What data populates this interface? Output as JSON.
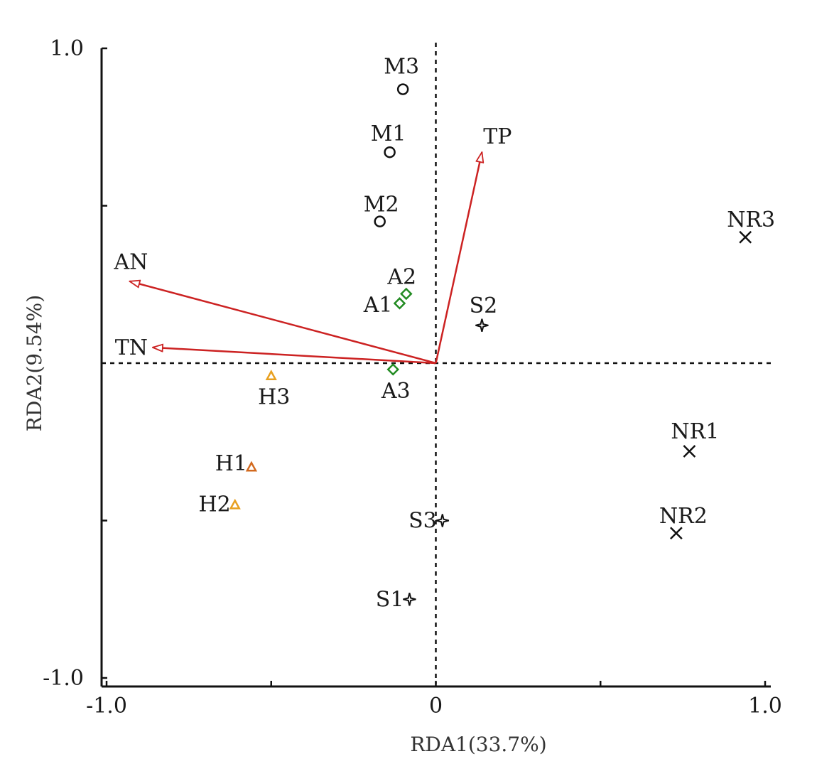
{
  "chart_data": {
    "type": "scatter",
    "xlabel": "RDA1(33.7%)",
    "ylabel": "RDA2(9.54%)",
    "xlim": [
      -1.0,
      1.0
    ],
    "ylim": [
      -1.0,
      1.0
    ],
    "x_tick_labels": [
      {
        "value": -1.0,
        "label": "-1.0"
      },
      {
        "value": 0,
        "label": "0"
      },
      {
        "value": 1.0,
        "label": "1.0"
      }
    ],
    "y_tick_labels": [
      {
        "value": 1.0,
        "label": "1.0"
      },
      {
        "value": -1.0,
        "label": "-1.0"
      }
    ],
    "minor_ticks": [
      -0.5,
      0.5
    ],
    "zero_lines": "dashed",
    "grid": false,
    "arrows": [
      {
        "name": "TP",
        "x": 0.14,
        "y": 0.67,
        "color": "#cc2222"
      },
      {
        "name": "AN",
        "x": -0.93,
        "y": 0.26,
        "color": "#cc2222"
      },
      {
        "name": "TN",
        "x": -0.86,
        "y": 0.05,
        "color": "#cc2222"
      }
    ],
    "groups": [
      {
        "id": "M",
        "marker": "circle",
        "color": "#111111",
        "points": [
          {
            "label": "M3",
            "x": -0.1,
            "y": 0.87
          },
          {
            "label": "M1",
            "x": -0.14,
            "y": 0.67
          },
          {
            "label": "M2",
            "x": -0.17,
            "y": 0.45
          }
        ]
      },
      {
        "id": "A",
        "marker": "diamond",
        "color": "#228B22",
        "points": [
          {
            "label": "A2",
            "x": -0.09,
            "y": 0.22
          },
          {
            "label": "A1",
            "x": -0.11,
            "y": 0.19
          },
          {
            "label": "A3",
            "x": -0.13,
            "y": -0.02
          }
        ]
      },
      {
        "id": "S",
        "marker": "star",
        "color": "#111111",
        "points": [
          {
            "label": "S2",
            "x": 0.14,
            "y": 0.12
          },
          {
            "label": "S3",
            "x": 0.02,
            "y": -0.5
          },
          {
            "label": "S1",
            "x": -0.08,
            "y": -0.75
          }
        ]
      },
      {
        "id": "H",
        "marker": "triangle",
        "color": "#E8A020",
        "points": [
          {
            "label": "H3",
            "x": -0.5,
            "y": -0.04,
            "color": "#E8A020"
          },
          {
            "label": "H1",
            "x": -0.56,
            "y": -0.33,
            "color": "#D2691E"
          },
          {
            "label": "H2",
            "x": -0.61,
            "y": -0.45,
            "color": "#E8A020"
          }
        ]
      },
      {
        "id": "NR",
        "marker": "x",
        "color": "#111111",
        "points": [
          {
            "label": "NR3",
            "x": 0.94,
            "y": 0.4
          },
          {
            "label": "NR1",
            "x": 0.77,
            "y": -0.28
          },
          {
            "label": "NR2",
            "x": 0.73,
            "y": -0.54
          }
        ]
      }
    ]
  }
}
